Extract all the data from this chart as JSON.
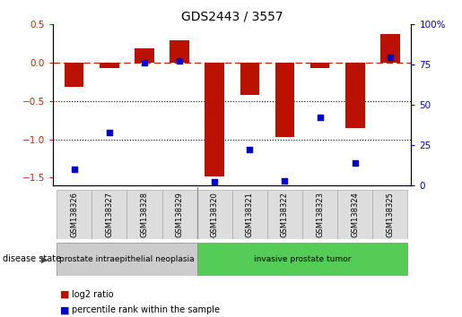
{
  "title": "GDS2443 / 3557",
  "samples": [
    "GSM138326",
    "GSM138327",
    "GSM138328",
    "GSM138329",
    "GSM138320",
    "GSM138321",
    "GSM138322",
    "GSM138323",
    "GSM138324",
    "GSM138325"
  ],
  "log2_ratio": [
    -0.32,
    -0.08,
    0.18,
    0.28,
    -1.48,
    -0.42,
    -0.97,
    -0.07,
    -0.85,
    0.37
  ],
  "percentile_rank": [
    10,
    33,
    76,
    77,
    2,
    22,
    3,
    42,
    14,
    79
  ],
  "ylim_left": [
    -1.6,
    0.5
  ],
  "bar_color": "#bb1100",
  "dot_color": "#0000cc",
  "dashed_line_color": "#cc2200",
  "dotted_line_color": "#000000",
  "groups": [
    {
      "label": "prostate intraepithelial neoplasia",
      "start": 0,
      "end": 4,
      "color": "#cccccc"
    },
    {
      "label": "invasive prostate tumor",
      "start": 4,
      "end": 10,
      "color": "#55cc55"
    }
  ],
  "disease_state_label": "disease state",
  "legend_log2": "log2 ratio",
  "legend_pct": "percentile rank within the sample",
  "background_color": "#ffffff",
  "tick_fontsize": 7.5,
  "title_fontsize": 10,
  "bar_width": 0.55
}
